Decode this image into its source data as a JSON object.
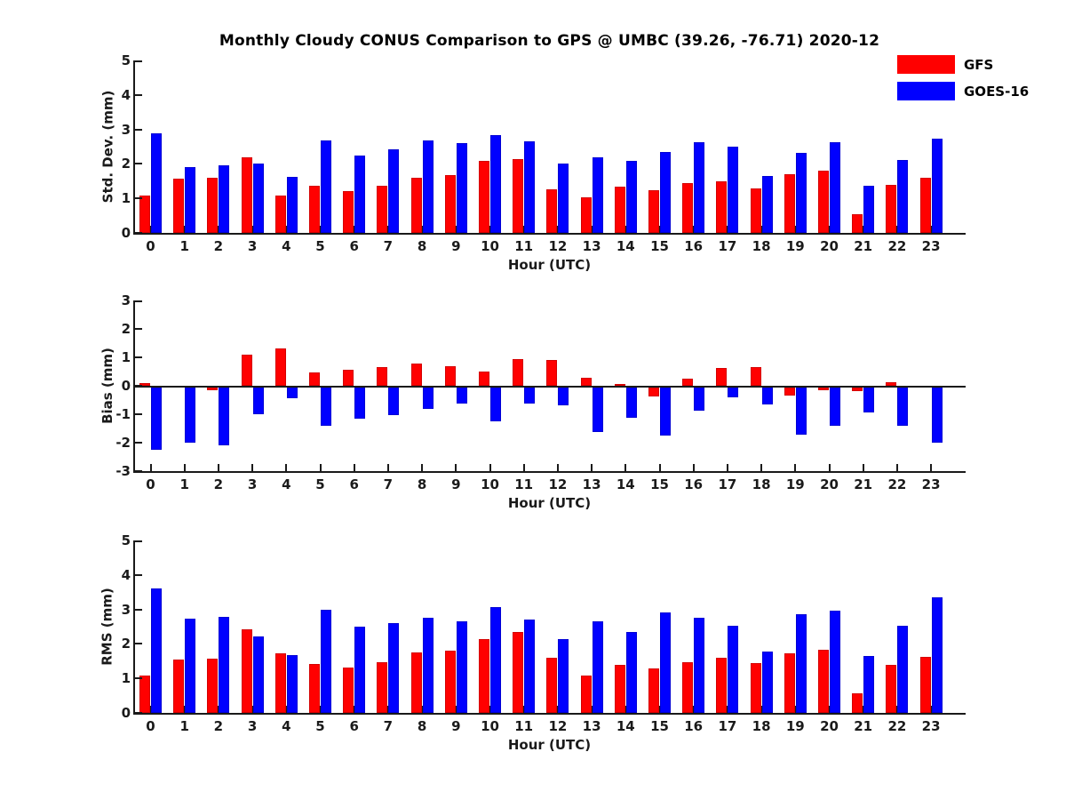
{
  "title": "Monthly Cloudy CONUS Comparison to GPS @ UMBC (39.26, -76.71) 2020-12",
  "legend": [
    {
      "label": "GFS",
      "color": "#ff0000"
    },
    {
      "label": "GOES-16",
      "color": "#0000ff"
    }
  ],
  "colors": {
    "gfs": "#ff0000",
    "goes16": "#0000ff",
    "axis": "#1a1a1a",
    "background": "#ffffff"
  },
  "chart_data": [
    {
      "type": "bar",
      "title": "",
      "ylabel": "Std. Dev. (mm)",
      "xlabel": "Hour (UTC)",
      "ylim": [
        0,
        5
      ],
      "yticks": [
        0,
        1,
        2,
        3,
        4,
        5
      ],
      "grid": false,
      "legend_position": "top-right",
      "categories": [
        "0",
        "1",
        "2",
        "3",
        "4",
        "5",
        "6",
        "7",
        "8",
        "9",
        "10",
        "11",
        "12",
        "13",
        "14",
        "15",
        "16",
        "17",
        "18",
        "19",
        "20",
        "21",
        "22",
        "23"
      ],
      "series": [
        {
          "name": "GFS",
          "color": "#ff0000",
          "values": [
            1.08,
            1.56,
            1.59,
            2.2,
            1.09,
            1.36,
            1.2,
            1.36,
            1.59,
            1.68,
            2.1,
            2.15,
            1.27,
            1.03,
            1.34,
            1.23,
            1.44,
            1.49,
            1.3,
            1.7,
            1.8,
            0.54,
            1.38,
            1.61
          ]
        },
        {
          "name": "GOES-16",
          "color": "#0000ff",
          "values": [
            2.88,
            1.92,
            1.96,
            2.01,
            1.63,
            2.67,
            2.25,
            2.42,
            2.67,
            2.61,
            2.84,
            2.66,
            2.02,
            2.19,
            2.09,
            2.35,
            2.63,
            2.49,
            1.66,
            2.33,
            2.63,
            1.37,
            2.12,
            2.72
          ]
        }
      ]
    },
    {
      "type": "bar",
      "title": "",
      "ylabel": "Bias (mm)",
      "xlabel": "Hour (UTC)",
      "ylim": [
        -3,
        3
      ],
      "yticks": [
        -3,
        -2,
        -1,
        0,
        1,
        2,
        3
      ],
      "grid": false,
      "categories": [
        "0",
        "1",
        "2",
        "3",
        "4",
        "5",
        "6",
        "7",
        "8",
        "9",
        "10",
        "11",
        "12",
        "13",
        "14",
        "15",
        "16",
        "17",
        "18",
        "19",
        "20",
        "21",
        "22",
        "23"
      ],
      "series": [
        {
          "name": "GFS",
          "color": "#ff0000",
          "values": [
            0.08,
            0.0,
            -0.1,
            1.1,
            1.3,
            0.48,
            0.55,
            0.65,
            0.78,
            0.68,
            0.5,
            0.95,
            0.92,
            0.28,
            0.06,
            -0.3,
            0.25,
            0.62,
            0.65,
            -0.28,
            -0.09,
            -0.12,
            0.12,
            0.0
          ]
        },
        {
          "name": "GOES-16",
          "color": "#0000ff",
          "values": [
            -2.2,
            -1.95,
            -2.02,
            -0.95,
            -0.37,
            -1.33,
            -1.1,
            -0.98,
            -0.75,
            -0.55,
            -1.18,
            -0.57,
            -0.63,
            -1.55,
            -1.07,
            -1.7,
            -0.81,
            -0.34,
            -0.58,
            -1.65,
            -1.34,
            -0.89,
            -1.34,
            -1.95
          ]
        }
      ]
    },
    {
      "type": "bar",
      "title": "",
      "ylabel": "RMS (mm)",
      "xlabel": "Hour (UTC)",
      "ylim": [
        0,
        5
      ],
      "yticks": [
        0,
        1,
        2,
        3,
        4,
        5
      ],
      "grid": false,
      "categories": [
        "0",
        "1",
        "2",
        "3",
        "4",
        "5",
        "6",
        "7",
        "8",
        "9",
        "10",
        "11",
        "12",
        "13",
        "14",
        "15",
        "16",
        "17",
        "18",
        "19",
        "20",
        "21",
        "22",
        "23"
      ],
      "series": [
        {
          "name": "GFS",
          "color": "#ff0000",
          "values": [
            1.07,
            1.55,
            1.57,
            2.42,
            1.72,
            1.42,
            1.31,
            1.48,
            1.76,
            1.8,
            2.13,
            2.35,
            1.61,
            1.07,
            1.39,
            1.29,
            1.46,
            1.61,
            1.44,
            1.72,
            1.83,
            0.56,
            1.4,
            1.63
          ]
        },
        {
          "name": "GOES-16",
          "color": "#0000ff",
          "values": [
            3.61,
            2.73,
            2.79,
            2.22,
            1.68,
            2.98,
            2.51,
            2.6,
            2.77,
            2.66,
            3.07,
            2.71,
            2.13,
            2.66,
            2.35,
            2.9,
            2.77,
            2.52,
            1.79,
            2.86,
            2.96,
            1.66,
            2.52,
            3.35
          ]
        }
      ]
    }
  ]
}
